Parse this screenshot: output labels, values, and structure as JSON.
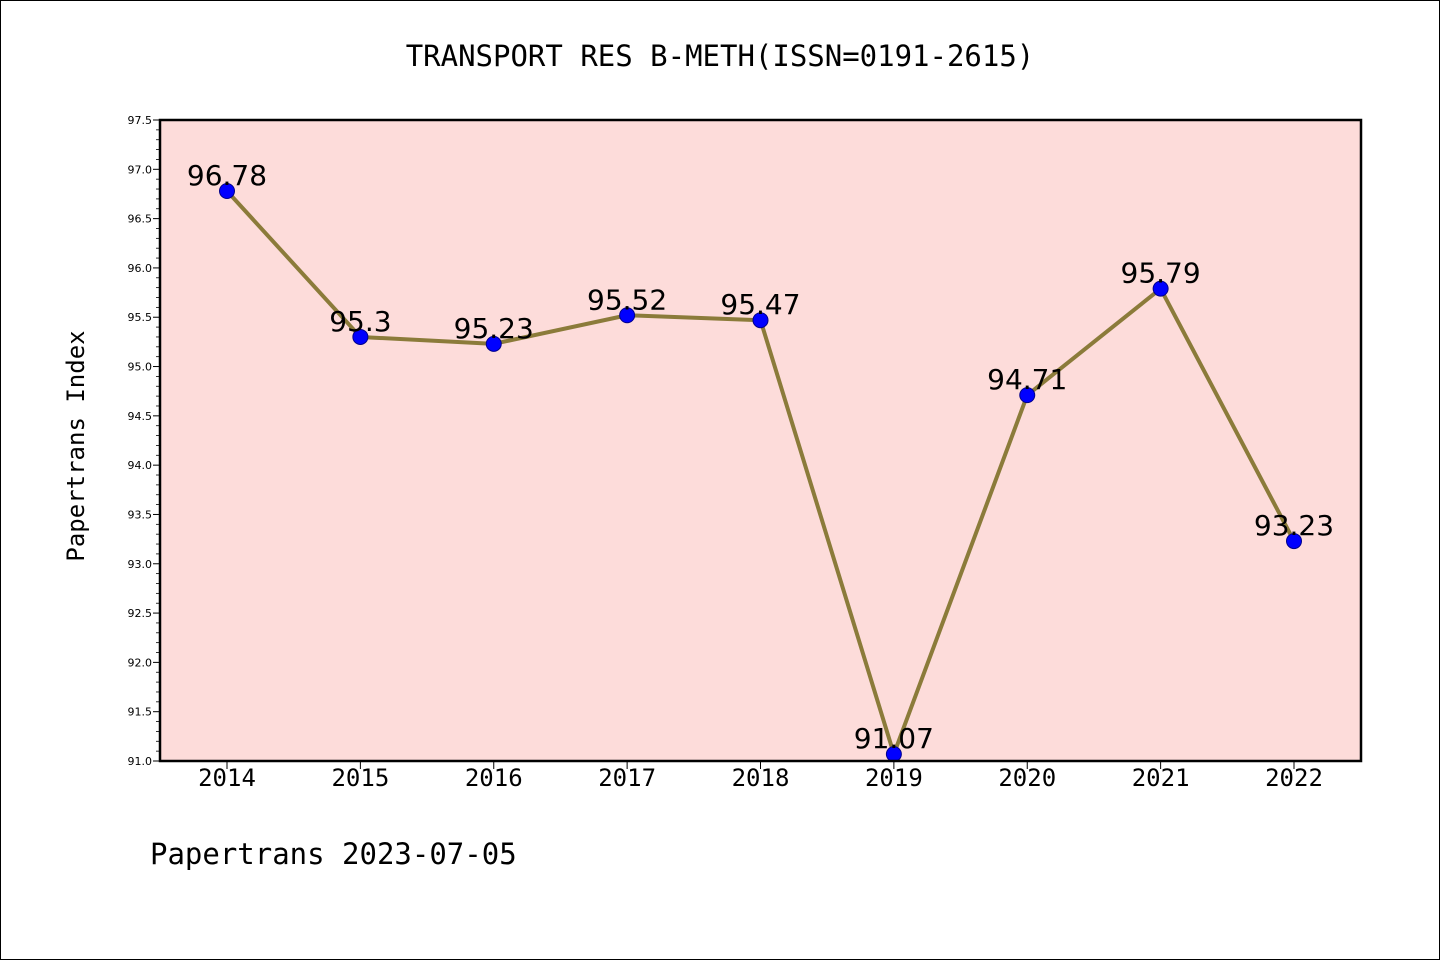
{
  "chart_data": {
    "type": "line",
    "title": "TRANSPORT RES B-METH(ISSN=0191-2615)",
    "ylabel": "Papertrans Index",
    "xlabel": "",
    "x": [
      "2014",
      "2015",
      "2016",
      "2017",
      "2018",
      "2019",
      "2020",
      "2021",
      "2022"
    ],
    "values": [
      96.78,
      95.3,
      95.23,
      95.52,
      95.47,
      91.07,
      94.71,
      95.79,
      93.23
    ],
    "data_labels": [
      "96.78",
      "95.3",
      "95.23",
      "95.52",
      "95.47",
      "91.07",
      "94.71",
      "95.79",
      "93.23"
    ],
    "ylim": [
      91.0,
      97.5
    ],
    "yticks": [
      "91.0",
      "91.5",
      "92.0",
      "92.5",
      "93.0",
      "93.5",
      "94.0",
      "94.5",
      "95.0",
      "95.5",
      "96.0",
      "96.5",
      "97.0",
      "97.5"
    ],
    "grid": false,
    "legend": "none",
    "colors": {
      "plot_background": "#fddcda",
      "line": "#8b7b3a",
      "marker": "#0000ff",
      "marker_edge": "#00008b"
    }
  },
  "footer": "Papertrans 2023-07-05"
}
